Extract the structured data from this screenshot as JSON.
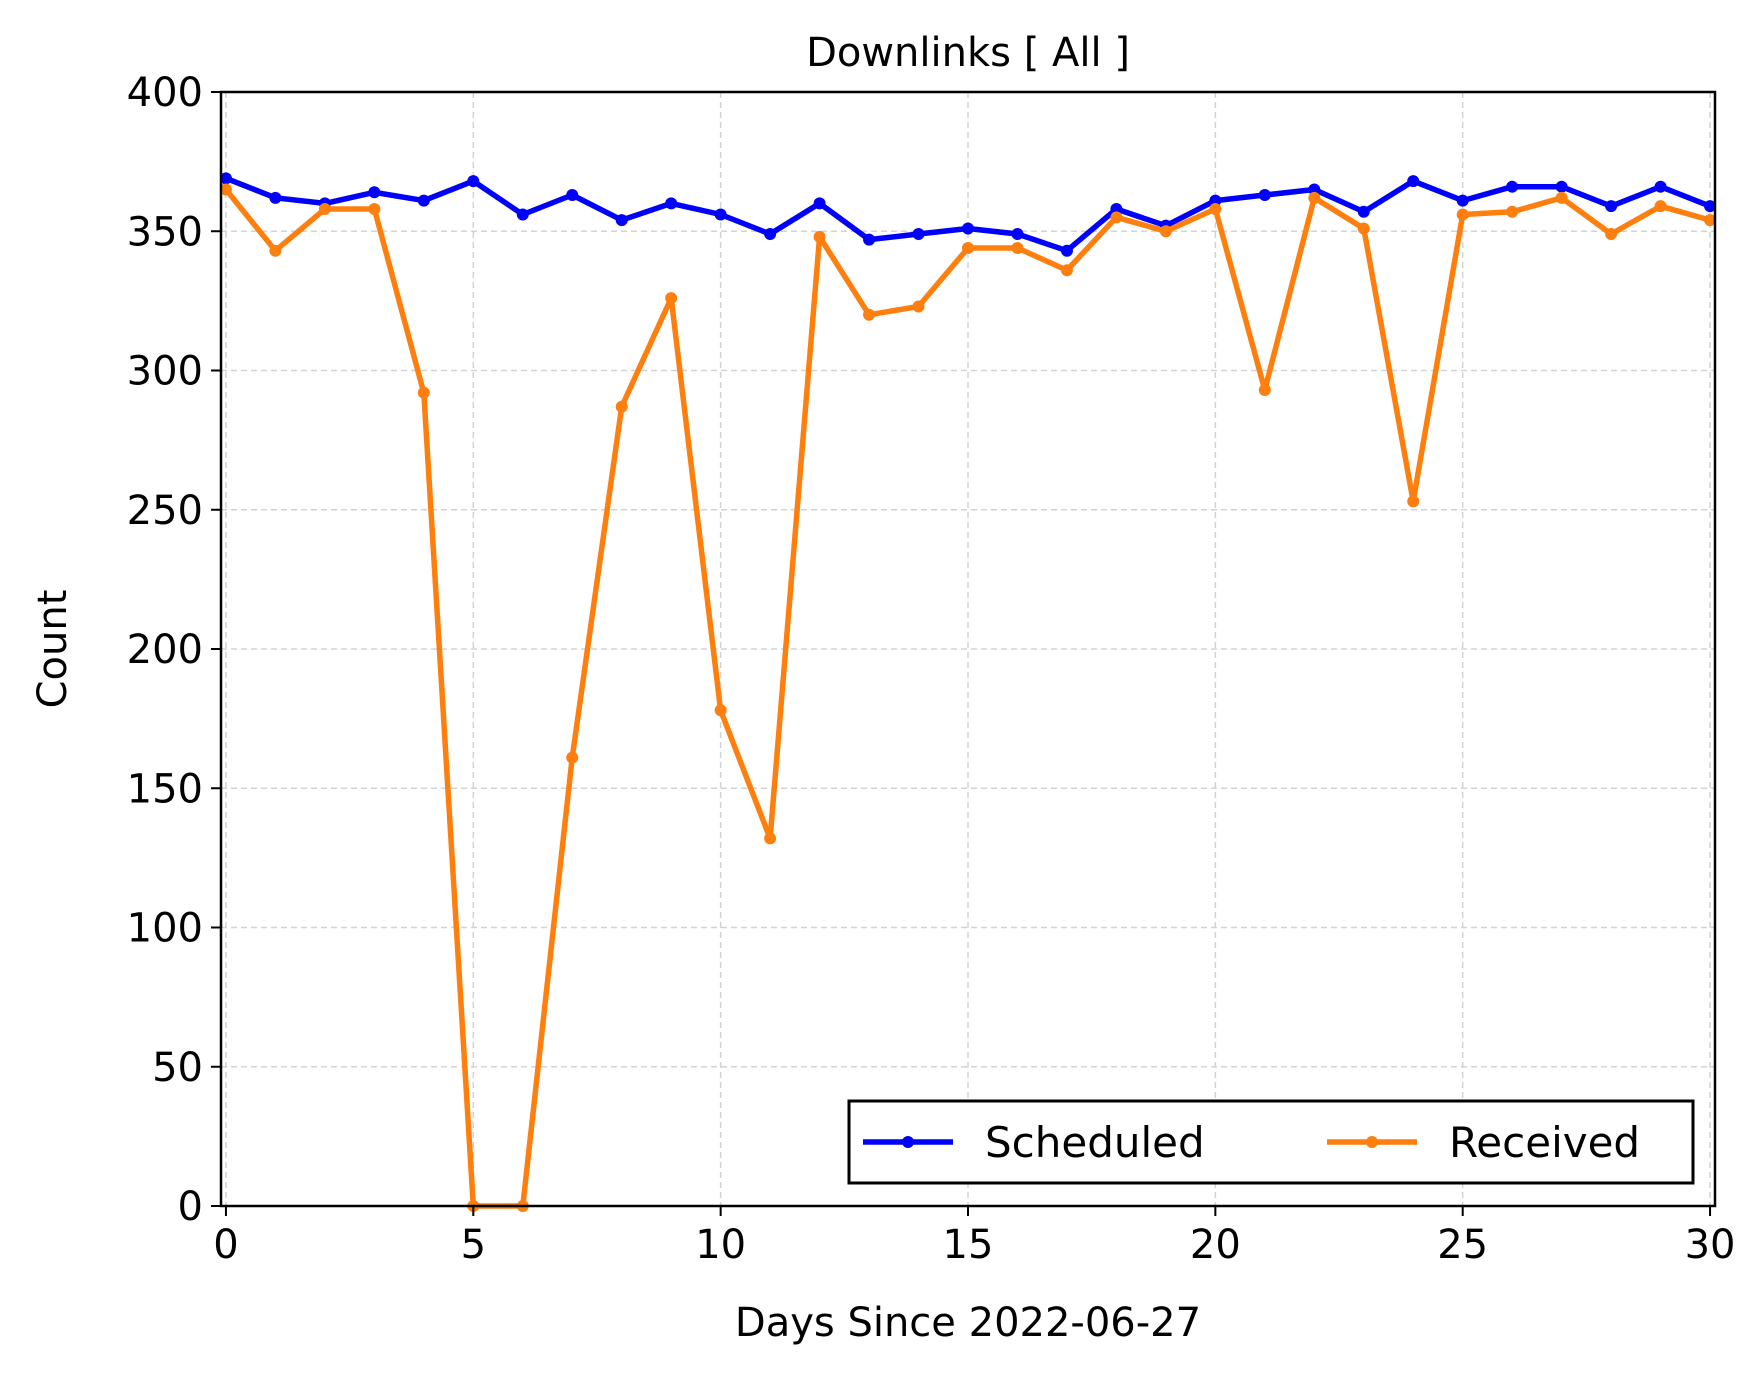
{
  "chart_data": {
    "type": "line",
    "title": "Downlinks [ All ]",
    "xlabel": "Days Since 2022-06-27",
    "ylabel": "Count",
    "xlim": [
      -0.1,
      30.1
    ],
    "ylim": [
      0,
      400
    ],
    "xticks": [
      0,
      5,
      10,
      15,
      20,
      25,
      30
    ],
    "yticks": [
      0,
      50,
      100,
      150,
      200,
      250,
      300,
      350,
      400
    ],
    "grid": true,
    "legend_position": "lower-right",
    "x": [
      0,
      1,
      2,
      3,
      4,
      5,
      6,
      7,
      8,
      9,
      10,
      11,
      12,
      13,
      14,
      15,
      16,
      17,
      18,
      19,
      20,
      21,
      22,
      23,
      24,
      25,
      26,
      27,
      28,
      29,
      30
    ],
    "series": [
      {
        "name": "Scheduled",
        "color": "#0000ff",
        "values": [
          369,
          362,
          360,
          364,
          361,
          368,
          356,
          363,
          354,
          360,
          356,
          349,
          360,
          347,
          349,
          351,
          349,
          343,
          358,
          352,
          361,
          363,
          365,
          357,
          368,
          361,
          366,
          366,
          359,
          366,
          359
        ]
      },
      {
        "name": "Received",
        "color": "#ff7f0e",
        "values": [
          365,
          343,
          358,
          358,
          292,
          0,
          0,
          161,
          287,
          326,
          178,
          132,
          348,
          320,
          323,
          344,
          344,
          336,
          355,
          350,
          358,
          293,
          362,
          351,
          253,
          356,
          357,
          362,
          349,
          359,
          354
        ]
      }
    ]
  }
}
